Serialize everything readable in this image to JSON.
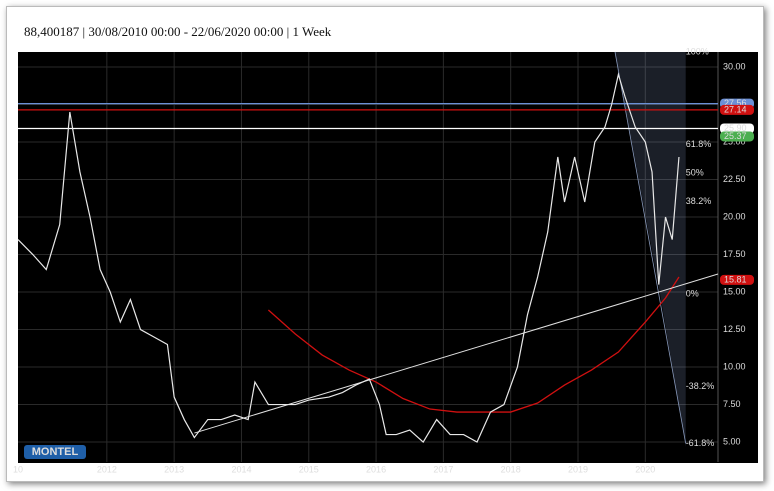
{
  "header": "88,400187 | 30/08/2010 00:00 - 22/06/2020 00:00 | 1 Week",
  "logo": "MONTEL",
  "chart_data": {
    "type": "line",
    "edge_label": "10",
    "x": [
      2010.68,
      2010.9,
      2011.1,
      2011.3,
      2011.45,
      2011.6,
      2011.75,
      2011.9,
      2012.05,
      2012.2,
      2012.35,
      2012.5,
      2012.7,
      2012.9,
      2013.0,
      2013.15,
      2013.3,
      2013.5,
      2013.7,
      2013.9,
      2014.1,
      2014.2,
      2014.4,
      2014.6,
      2014.8,
      2015.0,
      2015.3,
      2015.5,
      2015.7,
      2015.9,
      2016.05,
      2016.15,
      2016.3,
      2016.5,
      2016.7,
      2016.9,
      2017.1,
      2017.3,
      2017.5,
      2017.7,
      2017.9,
      2018.1,
      2018.25,
      2018.4,
      2018.55,
      2018.7,
      2018.8,
      2018.95,
      2019.1,
      2019.25,
      2019.4,
      2019.5,
      2019.6,
      2019.7,
      2019.85,
      2020.0,
      2020.1,
      2020.2,
      2020.3,
      2020.4,
      2020.5
    ],
    "values": [
      18.5,
      17.5,
      16.5,
      19.5,
      27.0,
      23.0,
      20.0,
      16.5,
      15.0,
      13.0,
      14.5,
      12.5,
      12.0,
      11.5,
      8.0,
      6.5,
      5.3,
      6.5,
      6.5,
      6.8,
      6.5,
      9.0,
      7.5,
      7.5,
      7.5,
      7.8,
      8.0,
      8.3,
      8.8,
      9.2,
      7.5,
      5.5,
      5.5,
      5.8,
      5.0,
      6.5,
      5.5,
      5.5,
      5.0,
      7.0,
      7.5,
      10.0,
      13.5,
      16.0,
      19.0,
      24.0,
      21.0,
      24.0,
      21.0,
      25.0,
      26.0,
      27.5,
      29.5,
      28.0,
      26.0,
      25.0,
      23.0,
      15.5,
      20.0,
      18.5,
      24.0
    ],
    "color": "#e8e8e8",
    "moving_average": {
      "color": "#d01010",
      "x": [
        2014.4,
        2014.8,
        2015.2,
        2015.6,
        2016.0,
        2016.4,
        2016.8,
        2017.2,
        2017.6,
        2018.0,
        2018.4,
        2018.8,
        2019.2,
        2019.6,
        2020.0,
        2020.3,
        2020.5
      ],
      "values": [
        13.8,
        12.2,
        10.8,
        9.8,
        9.0,
        7.9,
        7.2,
        7.0,
        7.0,
        7.0,
        7.6,
        8.8,
        9.8,
        11.0,
        13.0,
        14.6,
        16.0
      ]
    },
    "trend_line": {
      "color": "#e0e0e0",
      "x": [
        2013.3,
        2021.08
      ],
      "values": [
        5.6,
        16.2
      ]
    },
    "levels": [
      {
        "value": 27.56,
        "label": "27.56",
        "color": "#6b8fd6"
      },
      {
        "value": 27.14,
        "label": "27.14",
        "color": "#d01010"
      },
      {
        "value": 25.9,
        "label": "25.90",
        "color": "#ffffff"
      },
      {
        "value": 25.37,
        "label": "25.37",
        "color": "#4caf50"
      },
      {
        "value": 15.81,
        "label": "15.81",
        "color": "#d01010"
      }
    ],
    "fib_x": 2020.6,
    "fib_levels": [
      {
        "value": 31.0,
        "label": "100%"
      },
      {
        "value": 24.84,
        "label": "61.8%"
      },
      {
        "value": 22.94,
        "label": "50%"
      },
      {
        "value": 21.03,
        "label": "38.2%"
      },
      {
        "value": 14.87,
        "label": "0%"
      },
      {
        "value": 8.71,
        "label": "-38.2%"
      },
      {
        "value": 4.91,
        "label": "-61.8%"
      }
    ],
    "xlim": [
      2010.68,
      2021.08
    ],
    "xticks": [
      2012,
      2013,
      2014,
      2015,
      2016,
      2017,
      2018,
      2019,
      2020
    ],
    "ylim": [
      3.67,
      31.0
    ],
    "yticks": [
      {
        "value": 5,
        "label": "5.00"
      },
      {
        "value": 7.5,
        "label": "7.50"
      },
      {
        "value": 10,
        "label": "10.00"
      },
      {
        "value": 12.5,
        "label": "12.50"
      },
      {
        "value": 15,
        "label": "15.00"
      },
      {
        "value": 17.5,
        "label": "17.50"
      },
      {
        "value": 20,
        "label": "20.00"
      },
      {
        "value": 22.5,
        "label": "22.50"
      },
      {
        "value": 25,
        "label": "25.00"
      },
      {
        "value": 27.5,
        "label": "27.50"
      },
      {
        "value": 30,
        "label": "30.00"
      }
    ],
    "grid": true
  }
}
